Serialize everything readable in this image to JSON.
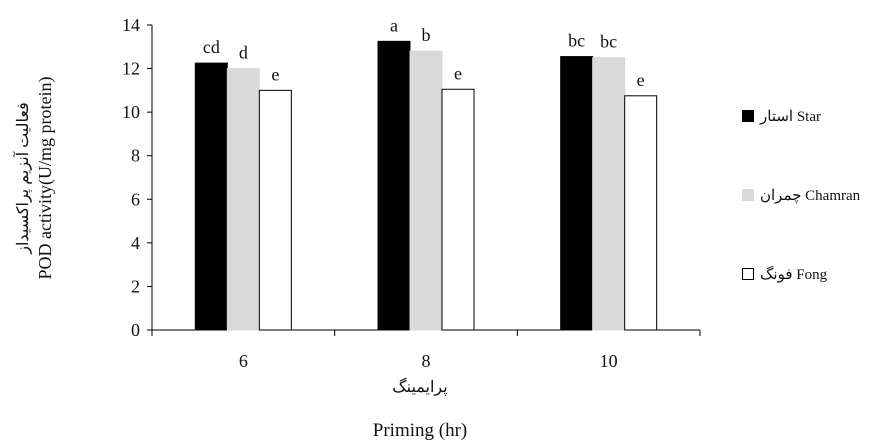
{
  "chart_data": {
    "type": "bar",
    "categories": [
      "6",
      "8",
      "10"
    ],
    "series": [
      {
        "name": "استار Star",
        "color": "#000000",
        "values": [
          12.25,
          13.25,
          12.55
        ],
        "labels": [
          "cd",
          "a",
          "bc"
        ]
      },
      {
        "name": "چمران Chamran",
        "color": "#d9d9d9",
        "values": [
          12.0,
          12.8,
          12.5
        ],
        "labels": [
          "d",
          "b",
          "bc"
        ]
      },
      {
        "name": "فونگ Fong",
        "color": "#ffffff",
        "values": [
          11.0,
          11.05,
          10.75
        ],
        "labels": [
          "e",
          "e",
          "e"
        ]
      }
    ],
    "ylabel_fa": "فعالیت آنزیم پراکسیداز",
    "ylabel": "POD activity(U/mg protein)",
    "xlabel_fa": "پرایمینگ",
    "xlabel": "Priming (hr)",
    "ylim": [
      0,
      14
    ],
    "yticks": [
      0,
      2,
      4,
      6,
      8,
      10,
      12,
      14
    ],
    "grid": false,
    "legend_position": "right"
  }
}
